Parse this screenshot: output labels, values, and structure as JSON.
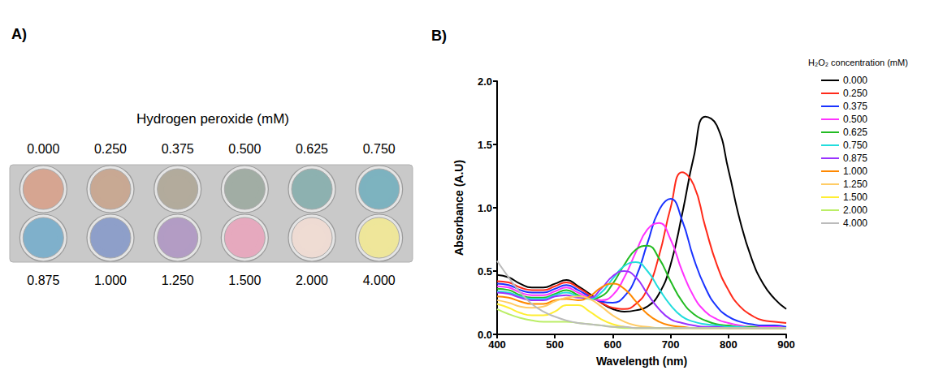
{
  "panel_a": {
    "panel_label": "A)",
    "title": "Hydrogen peroxide (mM)",
    "top_row": [
      {
        "label": "0.000",
        "color": "#d6a591"
      },
      {
        "label": "0.250",
        "color": "#c8a893"
      },
      {
        "label": "0.375",
        "color": "#b2ab9c"
      },
      {
        "label": "0.500",
        "color": "#a1ada4"
      },
      {
        "label": "0.625",
        "color": "#8db1b0"
      },
      {
        "label": "0.750",
        "color": "#7db2bf"
      }
    ],
    "bottom_row": [
      {
        "label": "0.875",
        "color": "#7fb0cb"
      },
      {
        "label": "1.000",
        "color": "#8e9fc9"
      },
      {
        "label": "1.250",
        "color": "#b29cc4"
      },
      {
        "label": "1.500",
        "color": "#e6a9be"
      },
      {
        "label": "2.000",
        "color": "#eedbd3"
      },
      {
        "label": "4.000",
        "color": "#eee69a"
      }
    ]
  },
  "chart_data": {
    "panel_label": "B)",
    "type": "line",
    "x_label": "Wavelength (nm)",
    "y_label": "Absorbance (A.U)",
    "legend_title": "H₂O₂ concentration (mM)",
    "legend": "right",
    "grid": false,
    "xlim": [
      400,
      900
    ],
    "xticks": [
      400,
      500,
      600,
      700,
      800,
      900
    ],
    "ylim": [
      0,
      2
    ],
    "yticks": [
      {
        "value": 0,
        "label": "0.0"
      },
      0.5,
      {
        "value": 1,
        "label": "1.0"
      },
      1.5,
      {
        "value": 2,
        "label": "2.0"
      }
    ],
    "x": [
      400,
      420,
      440,
      460,
      480,
      500,
      520,
      540,
      560,
      580,
      600,
      620,
      640,
      660,
      680,
      700,
      720,
      740,
      760,
      780,
      800,
      820,
      840,
      860,
      880,
      900
    ],
    "series": [
      {
        "name": "0.000",
        "color": "#000000",
        "values": [
          0.47,
          0.45,
          0.4,
          0.37,
          0.37,
          0.4,
          0.43,
          0.38,
          0.32,
          0.25,
          0.2,
          0.18,
          0.19,
          0.22,
          0.32,
          0.55,
          0.95,
          1.4,
          1.72,
          1.65,
          1.3,
          0.9,
          0.6,
          0.4,
          0.28,
          0.2
        ]
      },
      {
        "name": "0.250",
        "color": "#ff2a1a",
        "values": [
          0.42,
          0.41,
          0.37,
          0.35,
          0.35,
          0.38,
          0.41,
          0.37,
          0.31,
          0.25,
          0.21,
          0.2,
          0.24,
          0.36,
          0.62,
          1.0,
          1.28,
          1.18,
          0.85,
          0.55,
          0.35,
          0.22,
          0.15,
          0.11,
          0.1,
          0.09
        ]
      },
      {
        "name": "0.375",
        "color": "#1a33ff",
        "values": [
          0.4,
          0.39,
          0.35,
          0.33,
          0.33,
          0.36,
          0.39,
          0.35,
          0.3,
          0.26,
          0.25,
          0.3,
          0.45,
          0.72,
          0.98,
          1.07,
          0.9,
          0.6,
          0.37,
          0.22,
          0.14,
          0.1,
          0.08,
          0.07,
          0.07,
          0.06
        ]
      },
      {
        "name": "0.500",
        "color": "#ff33ff",
        "values": [
          0.38,
          0.37,
          0.33,
          0.31,
          0.31,
          0.34,
          0.37,
          0.33,
          0.29,
          0.27,
          0.31,
          0.45,
          0.65,
          0.83,
          0.88,
          0.75,
          0.5,
          0.3,
          0.18,
          0.12,
          0.09,
          0.07,
          0.06,
          0.06,
          0.06,
          0.05
        ]
      },
      {
        "name": "0.625",
        "color": "#22bb22",
        "values": [
          0.36,
          0.35,
          0.31,
          0.29,
          0.29,
          0.32,
          0.35,
          0.31,
          0.28,
          0.3,
          0.4,
          0.55,
          0.67,
          0.7,
          0.6,
          0.42,
          0.26,
          0.16,
          0.11,
          0.08,
          0.07,
          0.06,
          0.06,
          0.05,
          0.05,
          0.05
        ]
      },
      {
        "name": "0.750",
        "color": "#22dddd",
        "values": [
          0.34,
          0.33,
          0.3,
          0.28,
          0.28,
          0.31,
          0.33,
          0.3,
          0.28,
          0.33,
          0.44,
          0.54,
          0.57,
          0.5,
          0.36,
          0.23,
          0.14,
          0.1,
          0.08,
          0.07,
          0.06,
          0.06,
          0.05,
          0.05,
          0.05,
          0.05
        ]
      },
      {
        "name": "0.875",
        "color": "#9933ff",
        "values": [
          0.33,
          0.32,
          0.29,
          0.27,
          0.27,
          0.3,
          0.31,
          0.29,
          0.29,
          0.36,
          0.46,
          0.5,
          0.45,
          0.32,
          0.2,
          0.12,
          0.09,
          0.07,
          0.06,
          0.06,
          0.05,
          0.05,
          0.05,
          0.05,
          0.05,
          0.05
        ]
      },
      {
        "name": "1.000",
        "color": "#ff8800",
        "values": [
          0.3,
          0.29,
          0.26,
          0.24,
          0.24,
          0.27,
          0.28,
          0.27,
          0.3,
          0.37,
          0.4,
          0.36,
          0.26,
          0.16,
          0.1,
          0.07,
          0.06,
          0.05,
          0.05,
          0.05,
          0.05,
          0.05,
          0.05,
          0.05,
          0.05,
          0.05
        ]
      },
      {
        "name": "1.250",
        "color": "#ffcc66",
        "values": [
          0.27,
          0.25,
          0.22,
          0.21,
          0.22,
          0.26,
          0.29,
          0.3,
          0.28,
          0.22,
          0.15,
          0.1,
          0.07,
          0.06,
          0.05,
          0.05,
          0.05,
          0.05,
          0.05,
          0.05,
          0.05,
          0.05,
          0.05,
          0.05,
          0.05,
          0.05
        ]
      },
      {
        "name": "1.500",
        "color": "#ffee33",
        "values": [
          0.24,
          0.21,
          0.17,
          0.15,
          0.15,
          0.18,
          0.23,
          0.23,
          0.18,
          0.12,
          0.08,
          0.06,
          0.05,
          0.05,
          0.05,
          0.05,
          0.05,
          0.05,
          0.05,
          0.05,
          0.05,
          0.05,
          0.05,
          0.05,
          0.05,
          0.05
        ]
      },
      {
        "name": "2.000",
        "color": "#bbee66",
        "values": [
          0.2,
          0.16,
          0.13,
          0.11,
          0.1,
          0.1,
          0.1,
          0.09,
          0.08,
          0.07,
          0.06,
          0.05,
          0.05,
          0.05,
          0.05,
          0.05,
          0.05,
          0.05,
          0.05,
          0.05,
          0.05,
          0.05,
          0.05,
          0.05,
          0.05,
          0.05
        ]
      },
      {
        "name": "4.000",
        "color": "#bbbbbb",
        "values": [
          0.58,
          0.45,
          0.33,
          0.24,
          0.18,
          0.14,
          0.11,
          0.09,
          0.08,
          0.07,
          0.06,
          0.06,
          0.05,
          0.05,
          0.05,
          0.05,
          0.05,
          0.05,
          0.05,
          0.05,
          0.05,
          0.05,
          0.05,
          0.05,
          0.05,
          0.05
        ]
      }
    ]
  }
}
